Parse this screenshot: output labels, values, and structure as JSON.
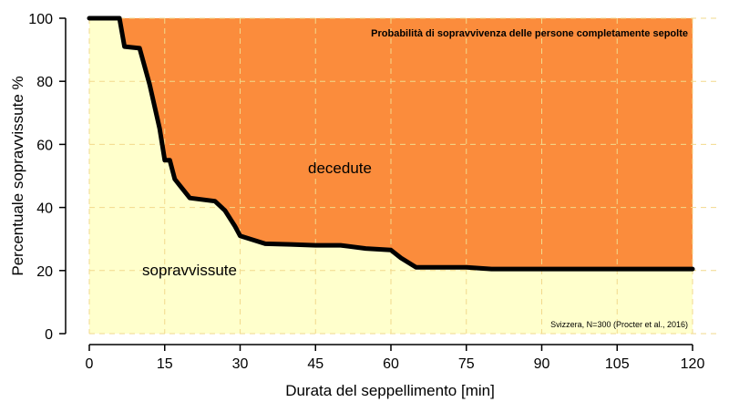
{
  "chart_data": {
    "type": "area",
    "title": "Probabilità di sopravvivenza delle persone completamente sepolte",
    "xlabel": "Durata del seppellimento [min]",
    "ylabel": "Percentuale sopravvissute %",
    "xlim": [
      0,
      120
    ],
    "ylim": [
      0,
      100
    ],
    "x_ticks": [
      0,
      15,
      30,
      45,
      60,
      75,
      90,
      105,
      120
    ],
    "y_ticks": [
      0,
      20,
      40,
      60,
      80,
      100
    ],
    "grid": true,
    "grid_style": "dashed",
    "source_note": "Svizzera, N=300 (Procter et al., 2016)",
    "region_labels": {
      "upper": "decedute",
      "lower": "sopravvissute"
    },
    "colors": {
      "upper_fill": "#fb8c3c",
      "lower_fill": "#ffffcc",
      "line": "#000000",
      "grid": "#f2d98c"
    },
    "series": [
      {
        "x": [
          0,
          6,
          7,
          10,
          12,
          14,
          15,
          16,
          17,
          18,
          20,
          25,
          27,
          29,
          30,
          35,
          40,
          45,
          50,
          55,
          60,
          62,
          65,
          70,
          75,
          80,
          85,
          90,
          100,
          110,
          120
        ],
        "values": [
          100,
          100,
          91,
          90.5,
          79,
          65,
          55,
          55,
          49,
          47,
          43,
          42,
          39,
          34,
          31,
          28.5,
          28.3,
          28,
          28,
          27,
          26.5,
          24,
          21,
          21,
          21,
          20.5,
          20.5,
          20.5,
          20.5,
          20.5,
          20.5
        ]
      }
    ]
  }
}
